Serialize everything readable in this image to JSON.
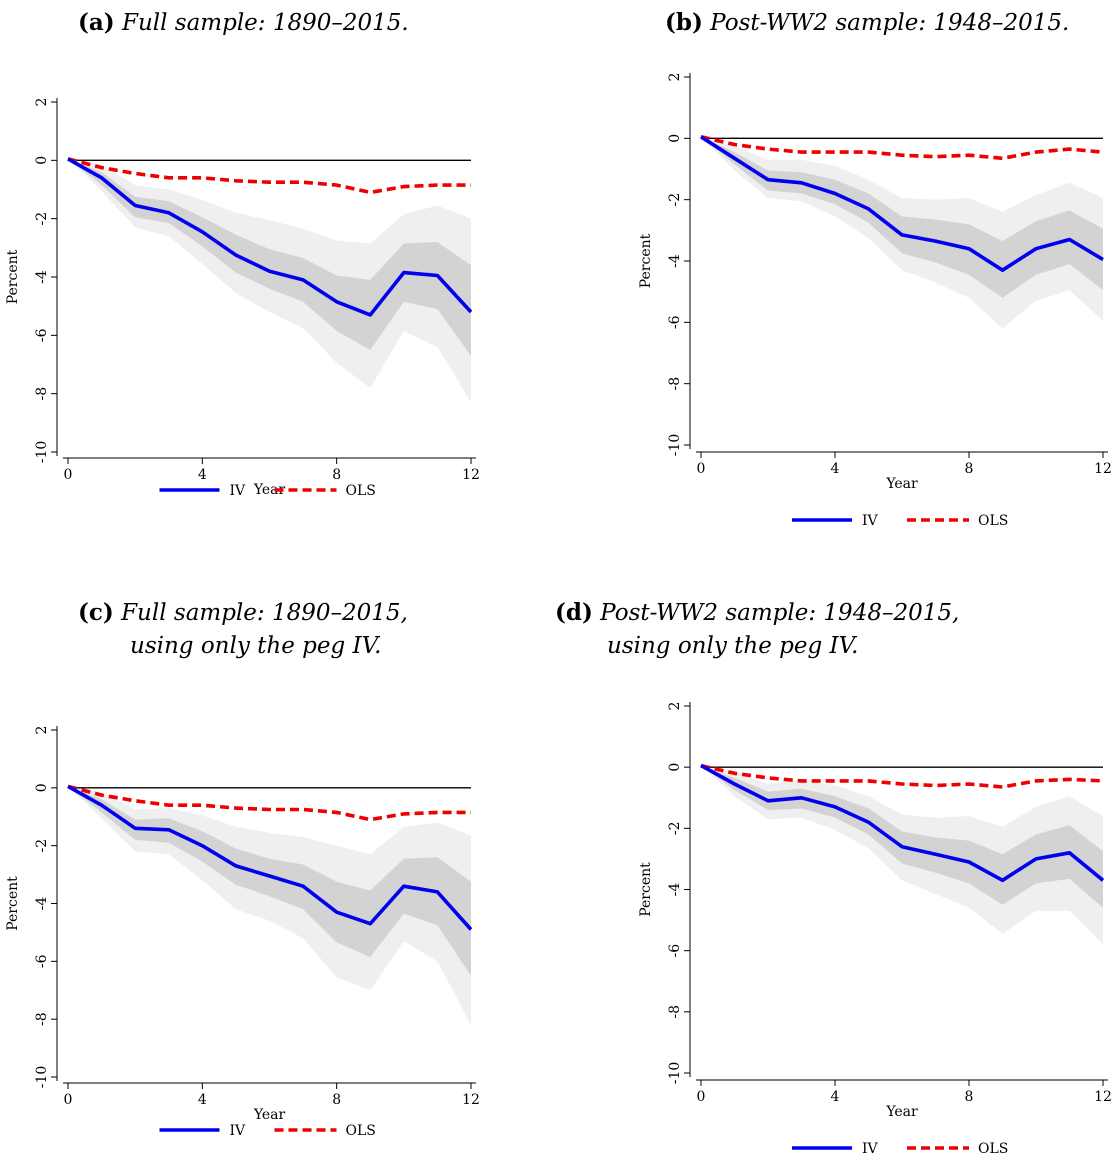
{
  "chart_data": [
    {
      "type": "line",
      "panel_label": "(a)",
      "title": "Full sample: 1890–2015.",
      "title_line2": "",
      "xlabel": "Year",
      "ylabel": "Percent",
      "xticks": [
        "0",
        "4",
        "8",
        "12"
      ],
      "yticks": [
        "2",
        "0",
        "-2",
        "-4",
        "-6",
        "-8",
        "-10"
      ],
      "xlim": [
        0,
        12
      ],
      "ylim": [
        -10,
        2
      ],
      "x": [
        0,
        1,
        2,
        3,
        4,
        5,
        6,
        7,
        8,
        9,
        10,
        11,
        12
      ],
      "legend_position": "bottom-center",
      "series": [
        {
          "name": "IV",
          "color": "#0000ee",
          "style": "solid",
          "values": [
            0.05,
            -0.6,
            -1.55,
            -1.8,
            -2.45,
            -3.25,
            -3.8,
            -4.1,
            -4.85,
            -5.3,
            -3.85,
            -3.95,
            -5.2
          ],
          "band68_lower": [
            0.05,
            -0.85,
            -1.95,
            -2.15,
            -2.95,
            -3.85,
            -4.4,
            -4.85,
            -5.85,
            -6.5,
            -4.85,
            -5.1,
            -6.7
          ],
          "band68_upper": [
            0.05,
            -0.4,
            -1.25,
            -1.4,
            -1.95,
            -2.55,
            -3.05,
            -3.35,
            -3.95,
            -4.1,
            -2.85,
            -2.8,
            -3.6
          ],
          "band90_lower": [
            0.05,
            -1.05,
            -2.3,
            -2.6,
            -3.55,
            -4.55,
            -5.2,
            -5.75,
            -6.95,
            -7.8,
            -5.85,
            -6.4,
            -8.3
          ],
          "band90_upper": [
            0.05,
            -0.15,
            -0.85,
            -1.0,
            -1.35,
            -1.8,
            -2.05,
            -2.35,
            -2.75,
            -2.85,
            -1.85,
            -1.55,
            -2.0
          ]
        },
        {
          "name": "OLS",
          "color": "#ee0000",
          "style": "dashed",
          "values": [
            0.05,
            -0.25,
            -0.45,
            -0.6,
            -0.6,
            -0.7,
            -0.75,
            -0.75,
            -0.85,
            -1.1,
            -0.9,
            -0.85,
            -0.85
          ]
        }
      ]
    },
    {
      "type": "line",
      "panel_label": "(b)",
      "title": "Post-WW2 sample: 1948–2015.",
      "title_line2": "",
      "xlabel": "Year",
      "ylabel": "Percent",
      "xticks": [
        "0",
        "4",
        "8",
        "12"
      ],
      "yticks": [
        "2",
        "0",
        "-2",
        "-4",
        "-6",
        "-8",
        "-10"
      ],
      "xlim": [
        0,
        12
      ],
      "ylim": [
        -10,
        2
      ],
      "x": [
        0,
        1,
        2,
        3,
        4,
        5,
        6,
        7,
        8,
        9,
        10,
        11,
        12
      ],
      "legend_position": "bottom-center",
      "series": [
        {
          "name": "IV",
          "color": "#0000ee",
          "style": "solid",
          "values": [
            0.05,
            -0.65,
            -1.35,
            -1.45,
            -1.8,
            -2.3,
            -3.15,
            -3.35,
            -3.6,
            -4.3,
            -3.6,
            -3.3,
            -3.95
          ],
          "band68_lower": [
            0.05,
            -0.85,
            -1.7,
            -1.8,
            -2.15,
            -2.75,
            -3.75,
            -4.05,
            -4.45,
            -5.2,
            -4.45,
            -4.1,
            -4.95
          ],
          "band68_upper": [
            0.05,
            -0.45,
            -1.05,
            -1.1,
            -1.35,
            -1.8,
            -2.55,
            -2.65,
            -2.8,
            -3.35,
            -2.7,
            -2.35,
            -2.95
          ],
          "band90_lower": [
            0.05,
            -1.05,
            -1.95,
            -2.05,
            -2.55,
            -3.25,
            -4.3,
            -4.7,
            -5.2,
            -6.2,
            -5.3,
            -4.95,
            -5.95
          ],
          "band90_upper": [
            0.05,
            -0.25,
            -0.7,
            -0.7,
            -0.9,
            -1.35,
            -1.95,
            -2.0,
            -1.95,
            -2.4,
            -1.85,
            -1.45,
            -1.95
          ]
        },
        {
          "name": "OLS",
          "color": "#ee0000",
          "style": "dashed",
          "values": [
            0.05,
            -0.2,
            -0.35,
            -0.45,
            -0.45,
            -0.45,
            -0.55,
            -0.6,
            -0.55,
            -0.65,
            -0.45,
            -0.35,
            -0.45
          ]
        }
      ]
    },
    {
      "type": "line",
      "panel_label": "(c)",
      "title": "Full sample: 1890–2015,",
      "title_line2": "using only the peg IV.",
      "xlabel": "Year",
      "ylabel": "Percent",
      "xticks": [
        "0",
        "4",
        "8",
        "12"
      ],
      "yticks": [
        "2",
        "0",
        "-2",
        "-4",
        "-6",
        "-8",
        "-10"
      ],
      "xlim": [
        0,
        12
      ],
      "ylim": [
        -10,
        2
      ],
      "x": [
        0,
        1,
        2,
        3,
        4,
        5,
        6,
        7,
        8,
        9,
        10,
        11,
        12
      ],
      "legend_position": "bottom-center",
      "series": [
        {
          "name": "IV",
          "color": "#0000ee",
          "style": "solid",
          "values": [
            0.05,
            -0.6,
            -1.4,
            -1.45,
            -2.0,
            -2.7,
            -3.05,
            -3.4,
            -4.3,
            -4.7,
            -3.4,
            -3.6,
            -4.9
          ],
          "band68_lower": [
            0.05,
            -0.85,
            -1.8,
            -1.9,
            -2.55,
            -3.35,
            -3.75,
            -4.2,
            -5.35,
            -5.85,
            -4.35,
            -4.75,
            -6.5
          ],
          "band68_upper": [
            0.05,
            -0.4,
            -1.1,
            -1.05,
            -1.5,
            -2.1,
            -2.45,
            -2.65,
            -3.25,
            -3.55,
            -2.45,
            -2.4,
            -3.25
          ],
          "band90_lower": [
            0.05,
            -1.05,
            -2.2,
            -2.3,
            -3.2,
            -4.2,
            -4.6,
            -5.2,
            -6.55,
            -7.0,
            -5.3,
            -6.0,
            -8.2
          ],
          "band90_upper": [
            0.05,
            -0.15,
            -0.75,
            -0.7,
            -0.95,
            -1.35,
            -1.55,
            -1.7,
            -2.0,
            -2.3,
            -1.35,
            -1.2,
            -1.65
          ]
        },
        {
          "name": "OLS",
          "color": "#ee0000",
          "style": "dashed",
          "values": [
            0.05,
            -0.25,
            -0.45,
            -0.6,
            -0.6,
            -0.7,
            -0.75,
            -0.75,
            -0.85,
            -1.1,
            -0.9,
            -0.85,
            -0.85
          ]
        }
      ]
    },
    {
      "type": "line",
      "panel_label": "(d)",
      "title": "Post-WW2 sample: 1948–2015,",
      "title_line2": "using only the peg IV.",
      "xlabel": "Year",
      "ylabel": "Percent",
      "xticks": [
        "0",
        "4",
        "8",
        "12"
      ],
      "yticks": [
        "2",
        "0",
        "-2",
        "-4",
        "-6",
        "-8",
        "-10"
      ],
      "xlim": [
        0,
        12
      ],
      "ylim": [
        -10,
        2
      ],
      "x": [
        0,
        1,
        2,
        3,
        4,
        5,
        6,
        7,
        8,
        9,
        10,
        11,
        12
      ],
      "legend_position": "bottom-center",
      "series": [
        {
          "name": "IV",
          "color": "#0000ee",
          "style": "solid",
          "values": [
            0.05,
            -0.55,
            -1.1,
            -1.0,
            -1.3,
            -1.8,
            -2.6,
            -2.85,
            -3.1,
            -3.7,
            -3.0,
            -2.8,
            -3.7
          ],
          "band68_lower": [
            0.05,
            -0.75,
            -1.4,
            -1.35,
            -1.65,
            -2.2,
            -3.15,
            -3.45,
            -3.8,
            -4.5,
            -3.8,
            -3.65,
            -4.6
          ],
          "band68_upper": [
            0.05,
            -0.35,
            -0.8,
            -0.7,
            -0.95,
            -1.35,
            -2.1,
            -2.3,
            -2.4,
            -2.85,
            -2.2,
            -1.9,
            -2.75
          ],
          "band90_lower": [
            0.05,
            -0.95,
            -1.7,
            -1.65,
            -2.05,
            -2.65,
            -3.7,
            -4.15,
            -4.6,
            -5.45,
            -4.7,
            -4.7,
            -5.8
          ],
          "band90_upper": [
            0.05,
            -0.15,
            -0.55,
            -0.4,
            -0.6,
            -0.95,
            -1.55,
            -1.65,
            -1.6,
            -1.95,
            -1.3,
            -0.95,
            -1.6
          ]
        },
        {
          "name": "OLS",
          "color": "#ee0000",
          "style": "dashed",
          "values": [
            0.05,
            -0.2,
            -0.35,
            -0.45,
            -0.45,
            -0.45,
            -0.55,
            -0.6,
            -0.55,
            -0.65,
            -0.45,
            -0.4,
            -0.45
          ]
        }
      ]
    }
  ]
}
